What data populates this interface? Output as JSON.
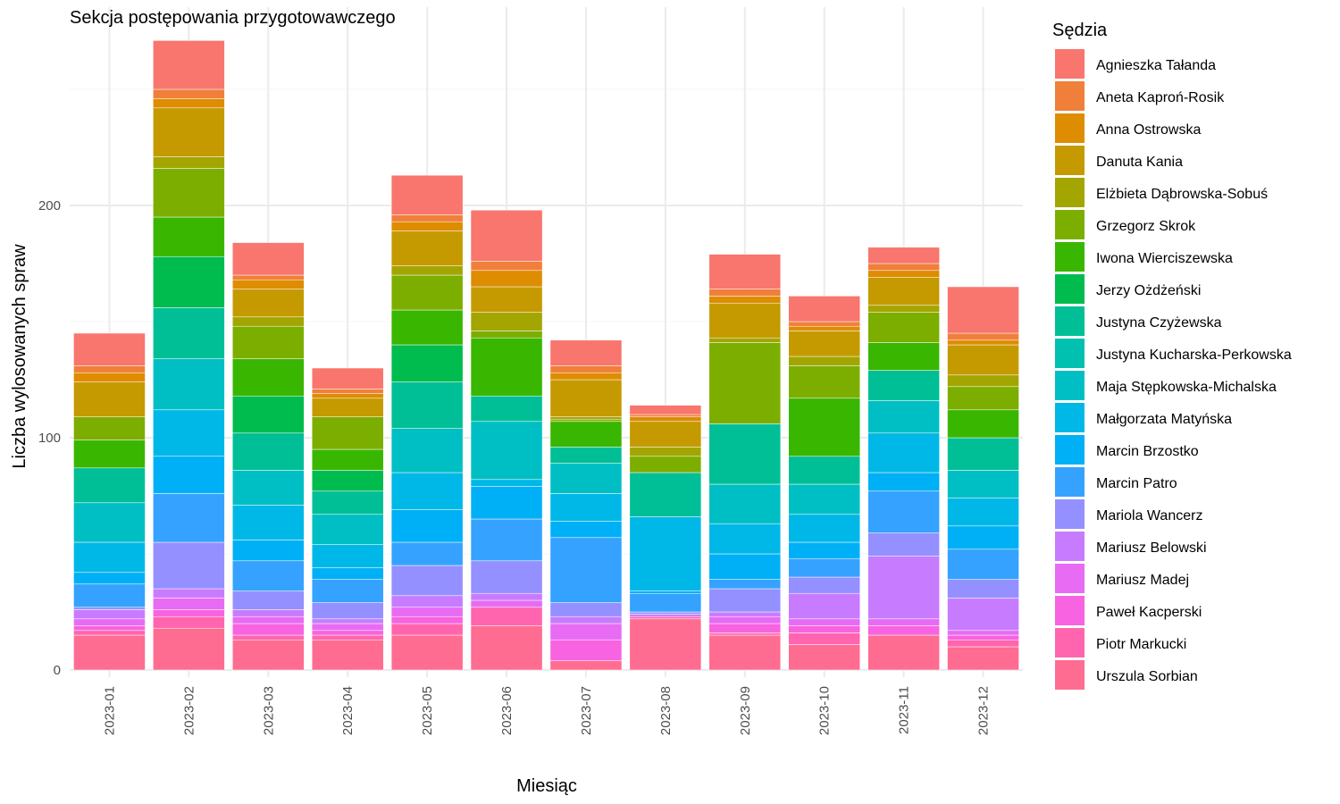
{
  "chart_data": {
    "type": "bar",
    "stacked": true,
    "title": "Sekcja postępowania przygotowawczego",
    "xlabel": "Miesiąc",
    "ylabel": "Liczba wylosowanych spraw",
    "ylim": [
      -10,
      282
    ],
    "yticks": [
      0,
      100,
      200
    ],
    "grid": true,
    "legend_position": "right",
    "legend_title": "Sędzia",
    "categories": [
      "2023-01",
      "2023-02",
      "2023-03",
      "2023-04",
      "2023-05",
      "2023-06",
      "2023-07",
      "2023-08",
      "2023-09",
      "2023-10",
      "2023-11",
      "2023-12"
    ],
    "series": [
      {
        "name": "Urszula Sorbian",
        "color": "#FF6C91",
        "values": [
          15,
          18,
          13,
          13,
          15,
          19,
          4,
          22,
          15,
          11,
          15,
          10
        ]
      },
      {
        "name": "Piotr Markucki",
        "color": "#FF65AE",
        "values": [
          2,
          5,
          2,
          2,
          5,
          8,
          0,
          1,
          1,
          5,
          0,
          3
        ]
      },
      {
        "name": "Paweł Kacperski",
        "color": "#F763E0",
        "values": [
          2,
          3,
          5,
          2,
          3,
          0,
          9,
          0,
          4,
          3,
          4,
          2
        ]
      },
      {
        "name": "Mariusz Madej",
        "color": "#E76BF3",
        "values": [
          3,
          5,
          3,
          3,
          4,
          3,
          7,
          0,
          3,
          3,
          3,
          2
        ]
      },
      {
        "name": "Mariusz Belowski",
        "color": "#C77CFF",
        "values": [
          4,
          4,
          3,
          2,
          5,
          3,
          3,
          1,
          2,
          11,
          27,
          14
        ]
      },
      {
        "name": "Mariola Wancerz",
        "color": "#9590FF",
        "values": [
          1,
          20,
          8,
          7,
          13,
          14,
          6,
          1,
          10,
          7,
          10,
          8
        ]
      },
      {
        "name": "Marcin Patro",
        "color": "#35A2FF",
        "values": [
          10,
          21,
          13,
          10,
          10,
          18,
          28,
          8,
          4,
          8,
          18,
          13
        ]
      },
      {
        "name": "Marcin Brzostko",
        "color": "#00B0F6",
        "values": [
          5,
          16,
          9,
          5,
          14,
          14,
          7,
          1,
          11,
          7,
          8,
          10
        ]
      },
      {
        "name": "Małgorzata Matyńska",
        "color": "#00B8E7",
        "values": [
          13,
          20,
          15,
          10,
          16,
          3,
          12,
          32,
          13,
          12,
          17,
          12
        ]
      },
      {
        "name": "Maja Stępkowska-Michalska",
        "color": "#00BFC4",
        "values": [
          17,
          22,
          15,
          13,
          19,
          25,
          13,
          0,
          17,
          13,
          14,
          12
        ]
      },
      {
        "name": "Justyna Kucharska-Perkowska",
        "color": "#00C0AF",
        "values": [
          0,
          0,
          0,
          0,
          0,
          0,
          0,
          0,
          0,
          0,
          0,
          0
        ]
      },
      {
        "name": "Justyna Czyżewska",
        "color": "#00BF96",
        "values": [
          15,
          22,
          16,
          10,
          20,
          11,
          7,
          19,
          26,
          12,
          13,
          14
        ]
      },
      {
        "name": "Jerzy Ożdżeński",
        "color": "#00BB4E",
        "values": [
          0,
          22,
          16,
          9,
          16,
          0,
          0,
          0,
          0,
          0,
          0,
          0
        ]
      },
      {
        "name": "Iwona Wierciszewska",
        "color": "#39B600",
        "values": [
          12,
          17,
          16,
          9,
          15,
          25,
          11,
          0,
          0,
          25,
          12,
          12
        ]
      },
      {
        "name": "Grzegorz Skrok",
        "color": "#7CAE00",
        "values": [
          10,
          21,
          14,
          14,
          15,
          3,
          1,
          7,
          35,
          14,
          13,
          10
        ]
      },
      {
        "name": "Elżbieta Dąbrowska-Sobuś",
        "color": "#A3A500",
        "values": [
          0,
          5,
          4,
          0,
          4,
          8,
          1,
          4,
          2,
          4,
          3,
          5
        ]
      },
      {
        "name": "Danuta Kania",
        "color": "#C49A00",
        "values": [
          15,
          21,
          12,
          8,
          15,
          11,
          16,
          11,
          15,
          11,
          12,
          13
        ]
      },
      {
        "name": "Anna Ostrowska",
        "color": "#DE8C00",
        "values": [
          4,
          4,
          4,
          2,
          4,
          7,
          3,
          2,
          3,
          2,
          3,
          2
        ]
      },
      {
        "name": "Aneta Kaproń-Rosik",
        "color": "#F07F3A",
        "values": [
          3,
          4,
          2,
          2,
          3,
          4,
          3,
          1,
          3,
          2,
          3,
          3
        ]
      },
      {
        "name": "Agnieszka Tałanda",
        "color": "#F8766D",
        "values": [
          14,
          21,
          14,
          9,
          17,
          22,
          11,
          4,
          15,
          11,
          7,
          20
        ]
      }
    ]
  }
}
